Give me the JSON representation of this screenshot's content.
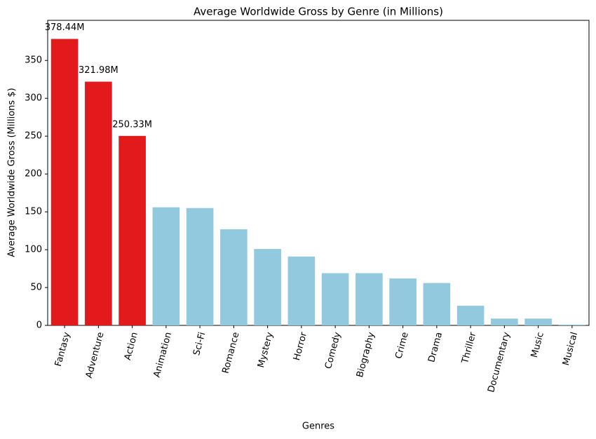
{
  "chart_data": {
    "type": "bar",
    "title": "Average Worldwide Gross by Genre (in Millions)",
    "x_label": "Genres",
    "y_label": "Average Worldwide Gross (Millions $)",
    "categories": [
      "Fantasy",
      "Adventure",
      "Action",
      "Animation",
      "Sci-Fi",
      "Romance",
      "Mystery",
      "Horror",
      "Comedy",
      "Biography",
      "Crime",
      "Drama",
      "Thriller",
      "Documentary",
      "Music",
      "Musical"
    ],
    "values": [
      378.44,
      321.98,
      250.33,
      156,
      155,
      127,
      101,
      91,
      69,
      69,
      62,
      56,
      26,
      9,
      9,
      1
    ],
    "value_labels": [
      "378.44M",
      "321.98M",
      "250.33M",
      null,
      null,
      null,
      null,
      null,
      null,
      null,
      null,
      null,
      null,
      null,
      null,
      null
    ],
    "colors": [
      "#e31a1c",
      "#e31a1c",
      "#e31a1c",
      "#92c9df",
      "#92c9df",
      "#92c9df",
      "#92c9df",
      "#92c9df",
      "#92c9df",
      "#92c9df",
      "#92c9df",
      "#92c9df",
      "#92c9df",
      "#92c9df",
      "#92c9df",
      "#92c9df"
    ],
    "ylim": [
      0,
      403
    ],
    "yticks": [
      0,
      50,
      100,
      150,
      200,
      250,
      300,
      350
    ],
    "grid": false
  }
}
